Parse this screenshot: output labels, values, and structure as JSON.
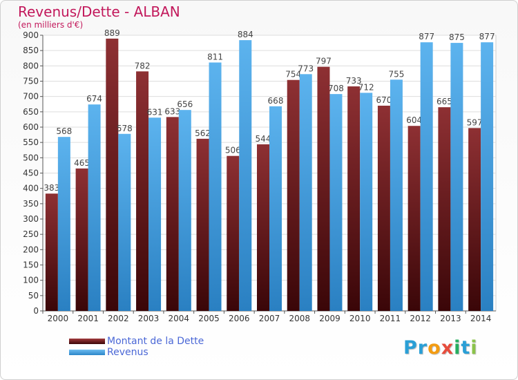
{
  "title": "Revenus/Dette - ALBAN",
  "subtitle": "(en milliers d'€)",
  "logo": {
    "text": "Proxiti",
    "letters": [
      "P",
      "r",
      "o",
      "x",
      "i",
      "t",
      "i"
    ],
    "colors": [
      "#2a9fd6",
      "#2a9fd6",
      "#f39c12",
      "#e74c3c",
      "#27ae60",
      "#2a9fd6",
      "#8bc34a"
    ]
  },
  "colors": {
    "dette": "#7a1f22",
    "revenus": "#4ca6e8",
    "axis": "#555555",
    "grid": "#dddddd"
  },
  "chart_data": {
    "type": "bar",
    "categories": [
      "2000",
      "2001",
      "2002",
      "2003",
      "2004",
      "2005",
      "2006",
      "2007",
      "2008",
      "2009",
      "2010",
      "2011",
      "2012",
      "2013",
      "2014"
    ],
    "series": [
      {
        "name": "Montant de la Dette",
        "values": [
          383,
          465,
          889,
          782,
          633,
          562,
          506,
          544,
          754,
          797,
          733,
          670,
          604,
          665,
          597
        ]
      },
      {
        "name": "Revenus",
        "values": [
          568,
          674,
          578,
          631,
          656,
          811,
          884,
          668,
          773,
          708,
          712,
          755,
          877,
          875,
          877
        ]
      }
    ],
    "ylim": [
      0,
      900
    ],
    "yticks": [
      0,
      50,
      100,
      150,
      200,
      250,
      300,
      350,
      400,
      450,
      500,
      550,
      600,
      650,
      700,
      750,
      800,
      850,
      900
    ],
    "grid": true,
    "legend_position": "bottom-left"
  }
}
